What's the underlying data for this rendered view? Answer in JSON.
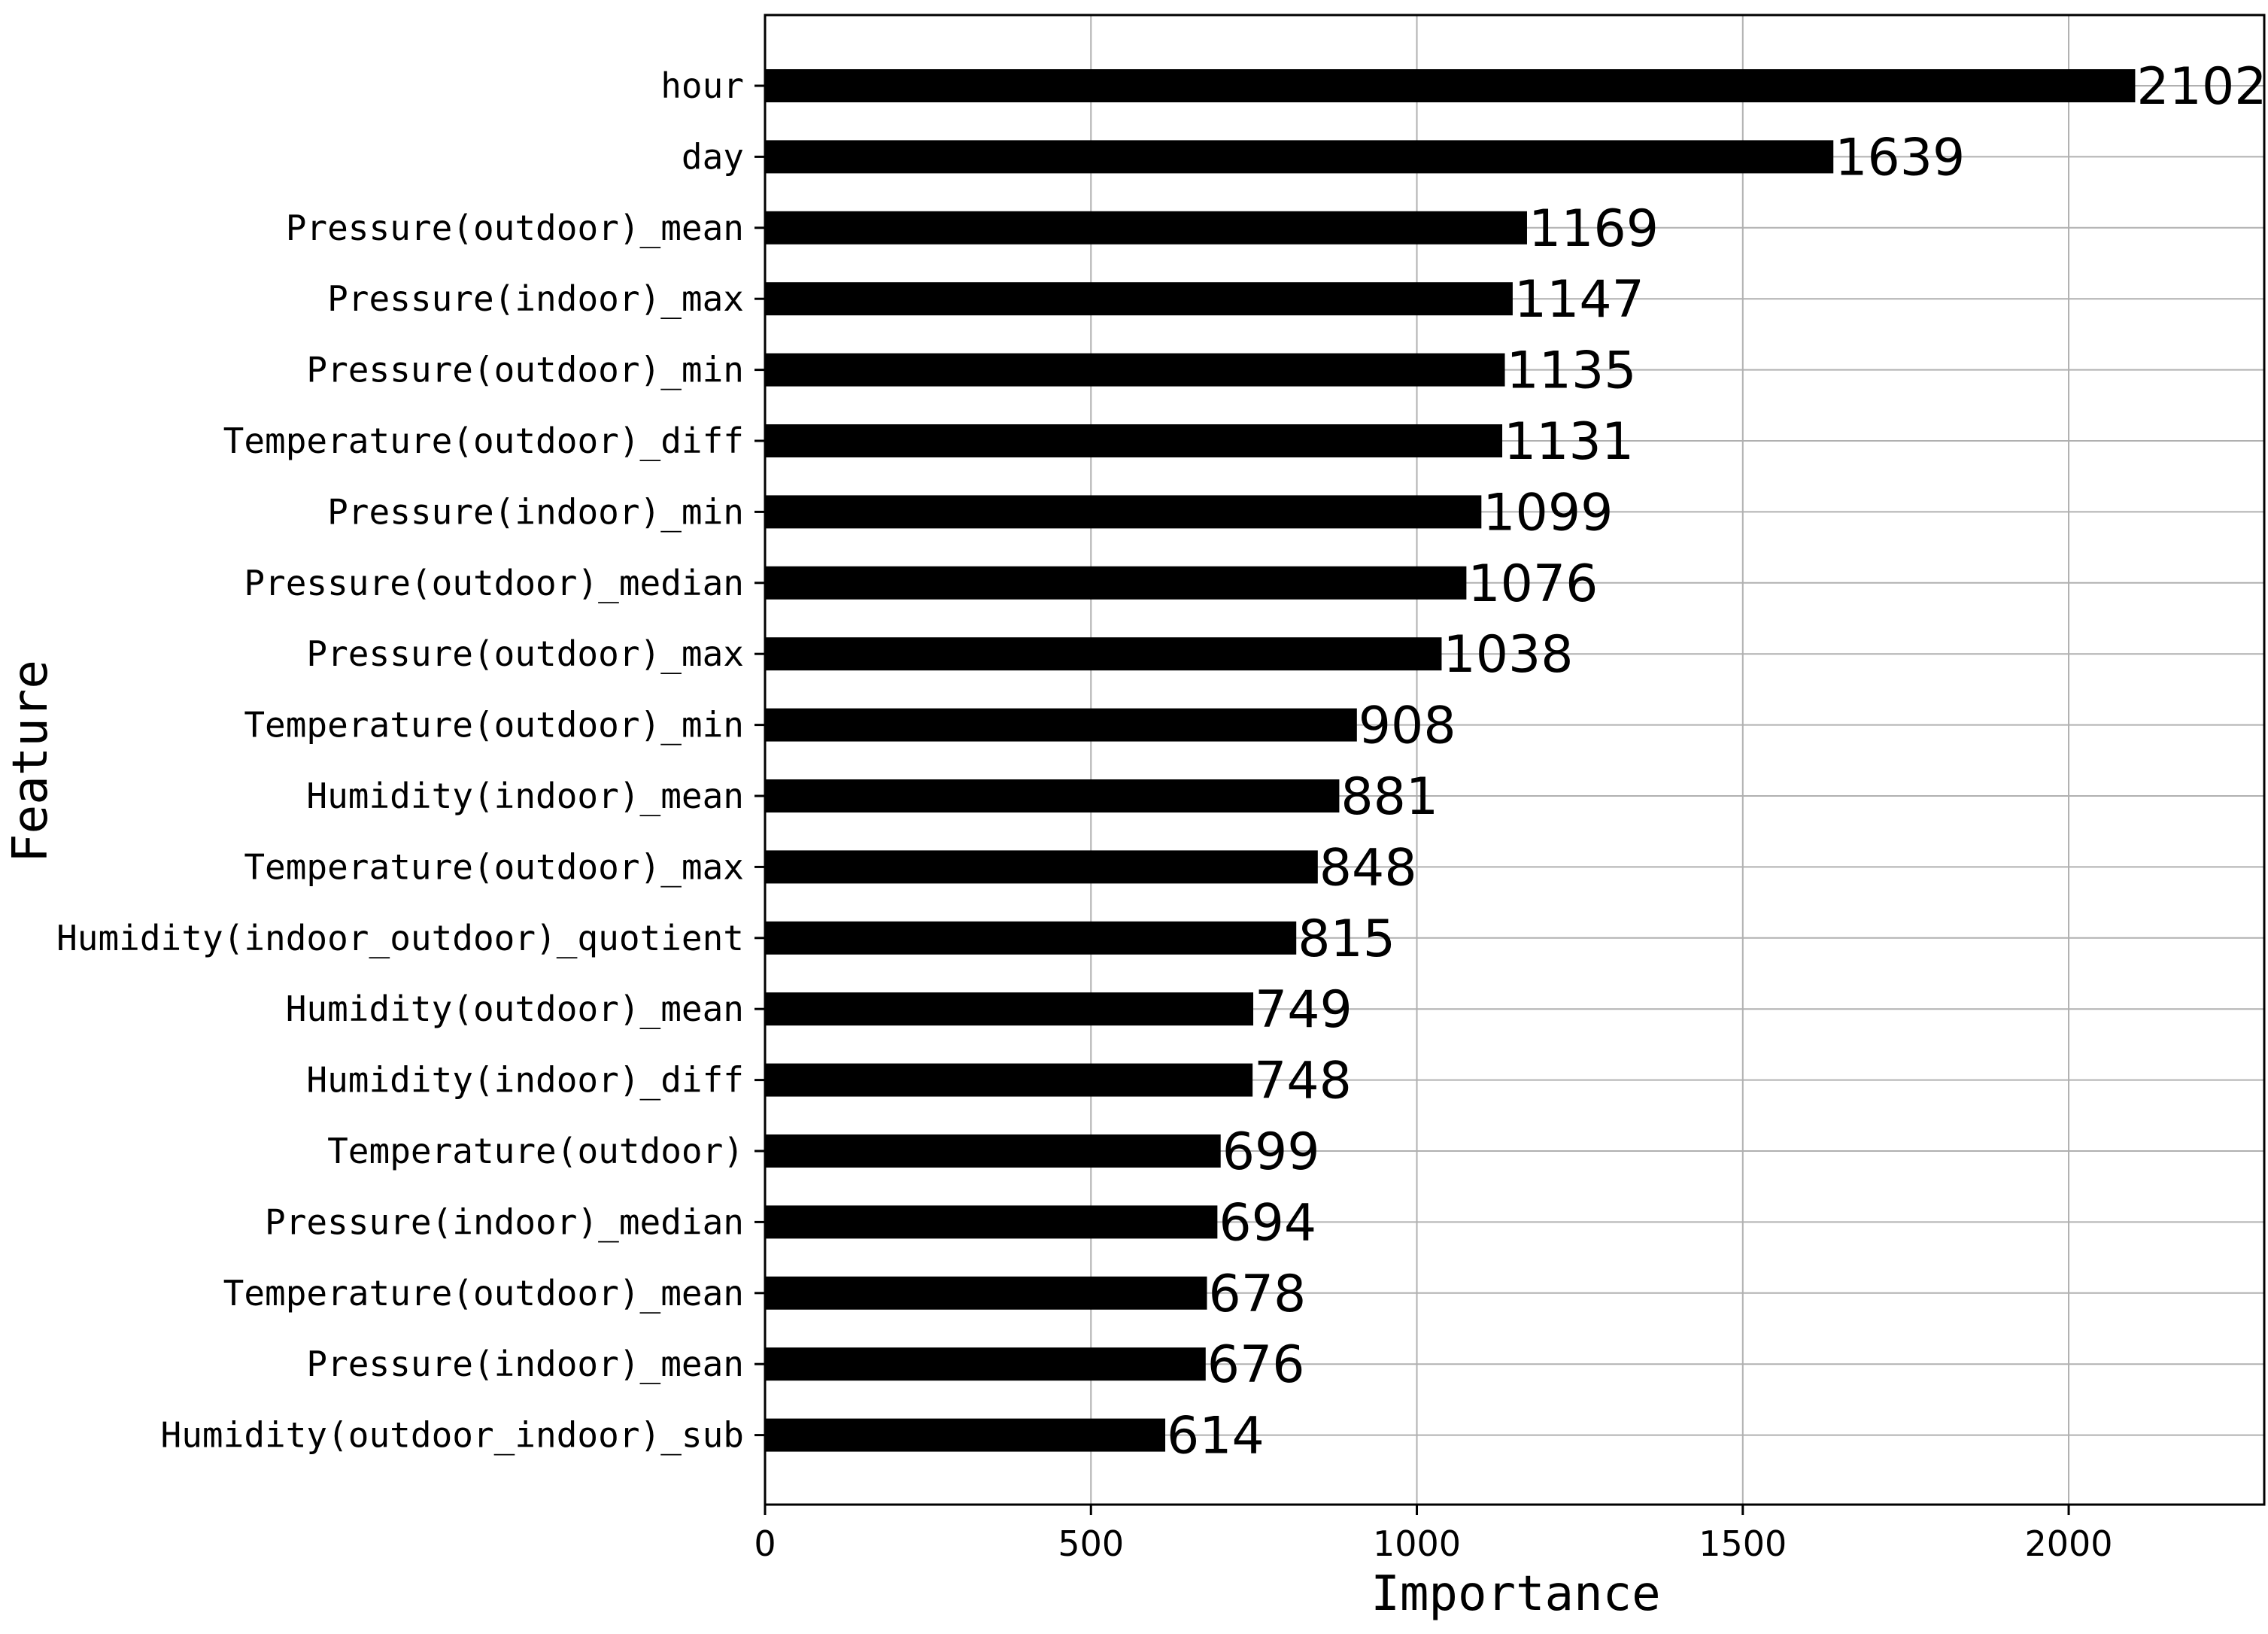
{
  "chart_data": {
    "type": "bar",
    "orientation": "horizontal",
    "title": "",
    "xlabel": "Importance",
    "ylabel": "Feature",
    "xlim": [
      0,
      2300
    ],
    "xticks": [
      0,
      500,
      1000,
      1500,
      2000
    ],
    "xtick_labels": [
      "0",
      "500",
      "1000",
      "1500",
      "2000"
    ],
    "grid": true,
    "bar_color": "#000000",
    "categories": [
      "hour",
      "day",
      "Pressure(outdoor)_mean",
      "Pressure(indoor)_max",
      "Pressure(outdoor)_min",
      "Temperature(outdoor)_diff",
      "Pressure(indoor)_min",
      "Pressure(outdoor)_median",
      "Pressure(outdoor)_max",
      "Temperature(outdoor)_min",
      "Humidity(indoor)_mean",
      "Temperature(outdoor)_max",
      "Humidity(indoor_outdoor)_quotient",
      "Humidity(outdoor)_mean",
      "Humidity(indoor)_diff",
      "Temperature(outdoor)",
      "Pressure(indoor)_median",
      "Temperature(outdoor)_mean",
      "Pressure(indoor)_mean",
      "Humidity(outdoor_indoor)_sub"
    ],
    "values": [
      2102,
      1639,
      1169,
      1147,
      1135,
      1131,
      1099,
      1076,
      1038,
      908,
      881,
      848,
      815,
      749,
      748,
      699,
      694,
      678,
      676,
      614
    ],
    "value_labels": [
      "2102",
      "1639",
      "1169",
      "1147",
      "1135",
      "1131",
      "1099",
      "1076",
      "1038",
      "908",
      "881",
      "848",
      "815",
      "749",
      "748",
      "699",
      "694",
      "678",
      "676",
      "614"
    ]
  }
}
